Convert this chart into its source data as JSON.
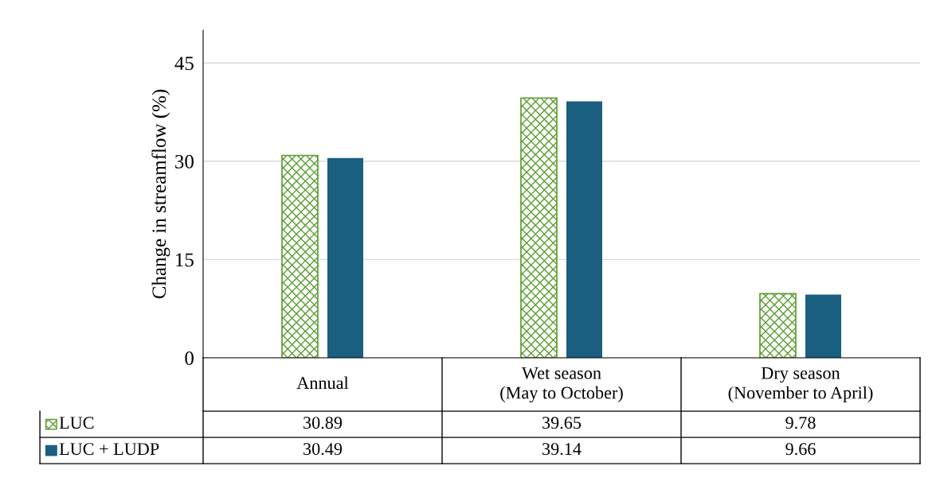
{
  "chart_data": {
    "type": "bar",
    "ylabel": "Change in streamflow (%)",
    "categories": [
      "Annual",
      "Wet season\n(May to October)",
      "Dry season\n(November to April)"
    ],
    "series": [
      {
        "name": "LUC",
        "color": "#5a9e2f",
        "values": [
          30.89,
          39.65,
          9.78
        ]
      },
      {
        "name": "LUC + LUDP",
        "color": "#1a5f80",
        "values": [
          30.49,
          39.14,
          9.66
        ]
      }
    ],
    "ylim": [
      0,
      50
    ],
    "yticks": [
      0,
      15,
      30,
      45
    ],
    "grid": "y",
    "data_labels": true,
    "legend": "bottom left"
  }
}
